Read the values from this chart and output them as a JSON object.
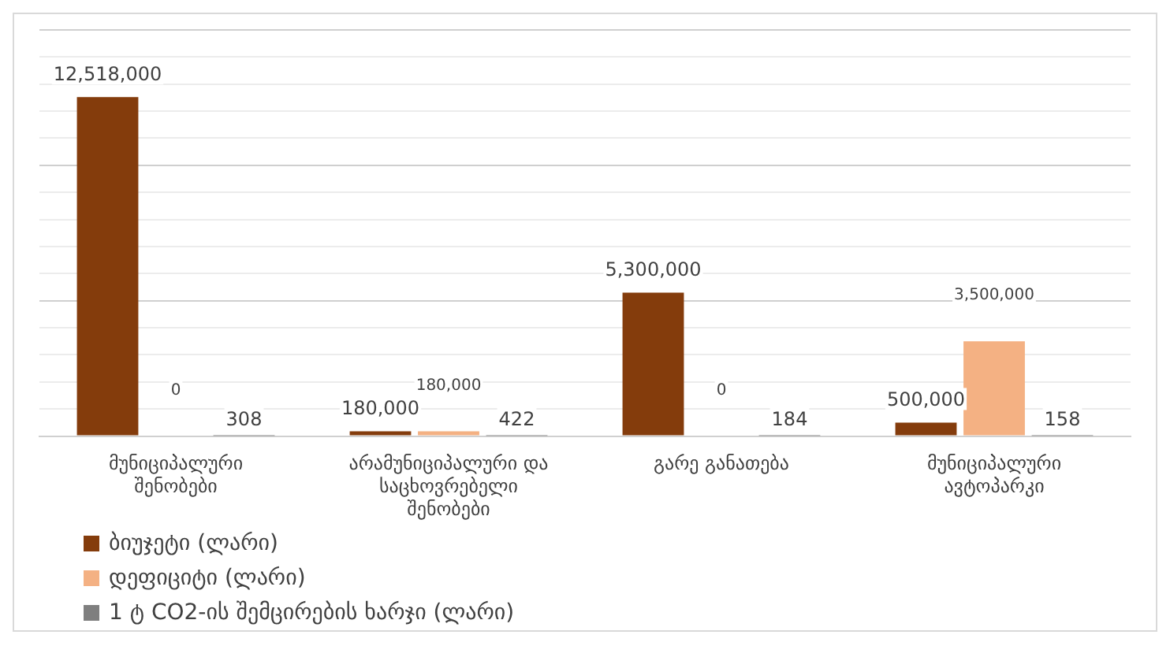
{
  "chart_data": {
    "type": "bar",
    "categories": [
      "მუნიციპალური შენობები",
      "არამუნიციპალური და საცხოვრებელი შენობები",
      "გარე განათება",
      "მუნიციპალური ავტოპარკი"
    ],
    "series": [
      {
        "name": "ბიუჯეტი (ლარი)",
        "color": "#843c0c",
        "values": [
          12518000,
          180000,
          5300000,
          500000
        ],
        "value_labels": [
          "12,518,000",
          "180,000",
          "5,300,000",
          "500,000"
        ]
      },
      {
        "name": "დეფიციტი (ლარი)",
        "color": "#f4b183",
        "values": [
          0,
          180000,
          0,
          3500000
        ],
        "value_labels": [
          "0",
          "180,000",
          "0",
          "3,500,000"
        ]
      },
      {
        "name": "1 ტ CO2-ის შემცირების ხარჯი (ლარი)",
        "color": "#7f7f7f",
        "values": [
          308,
          422,
          184,
          158
        ],
        "value_labels": [
          "308",
          "422",
          "184",
          "158"
        ]
      }
    ],
    "ylim": [
      0,
      15000000
    ],
    "yticks": [
      {
        "value": 0,
        "label": null
      },
      {
        "value": 1000000,
        "label": null
      },
      {
        "value": 2000000,
        "label": null
      },
      {
        "value": 3000000,
        "label": null
      },
      {
        "value": 4000000,
        "label": null
      },
      {
        "value": 5000000,
        "label": null
      },
      {
        "value": 6000000,
        "label": null
      },
      {
        "value": 7000000,
        "label": null
      },
      {
        "value": 8000000,
        "label": null
      },
      {
        "value": 9000000,
        "label": null
      },
      {
        "value": 10000000,
        "label": null
      },
      {
        "value": 11000000,
        "label": null
      },
      {
        "value": 12000000,
        "label": null
      },
      {
        "value": 13000000,
        "label": null
      },
      {
        "value": 14000000,
        "label": null
      },
      {
        "value": 15000000,
        "label": null
      }
    ],
    "tick_labels": "x",
    "grid": "y",
    "legend": "bottom left"
  }
}
